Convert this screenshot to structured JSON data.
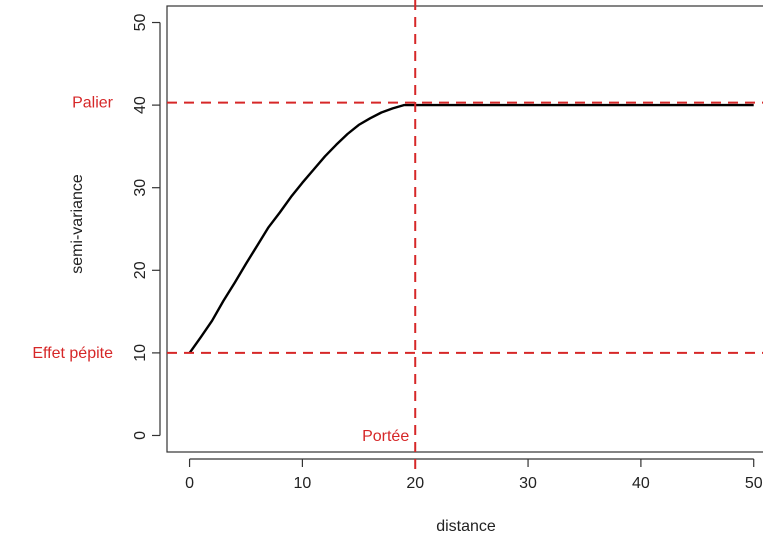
{
  "chart_data": {
    "type": "line",
    "title": "",
    "xlabel": "distance",
    "ylabel": "semi-variance",
    "xlim": [
      -2,
      51
    ],
    "ylim": [
      -2,
      52
    ],
    "x_ticks": [
      0,
      10,
      20,
      30,
      40,
      50
    ],
    "y_ticks": [
      0,
      10,
      20,
      30,
      40,
      50
    ],
    "grid": false,
    "series": [
      {
        "color": "#000000",
        "points": [
          [
            0,
            10
          ],
          [
            1,
            11.9
          ],
          [
            2,
            13.9
          ],
          [
            3,
            16.3
          ],
          [
            4,
            18.5
          ],
          [
            5,
            20.8
          ],
          [
            6,
            23.0
          ],
          [
            7,
            25.2
          ],
          [
            8,
            27.0
          ],
          [
            9,
            28.9
          ],
          [
            10,
            30.6
          ],
          [
            11,
            32.2
          ],
          [
            12,
            33.8
          ],
          [
            13,
            35.2
          ],
          [
            14,
            36.5
          ],
          [
            15,
            37.6
          ],
          [
            16,
            38.4
          ],
          [
            17,
            39.1
          ],
          [
            18,
            39.6
          ],
          [
            19,
            40.0
          ],
          [
            20,
            40.0
          ],
          [
            30,
            40.0
          ],
          [
            40,
            40.0
          ],
          [
            50,
            40.0
          ]
        ]
      }
    ],
    "reference_lines": {
      "color": "#d62728",
      "horizontal": [
        {
          "y": 40.3,
          "label": "Palier"
        },
        {
          "y": 10,
          "label": "Effet pépite"
        }
      ],
      "vertical": [
        {
          "x": 20,
          "label": "Portée"
        }
      ]
    }
  }
}
